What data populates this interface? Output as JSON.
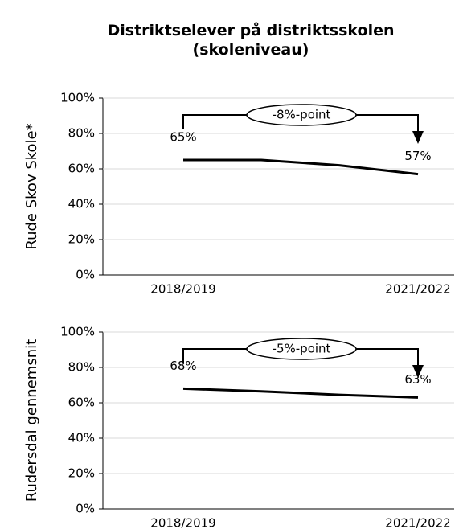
{
  "title": "Distriktselever på distriktsskolen\n(skoleniveau)",
  "chart_data": [
    {
      "type": "line",
      "ylabel": "Rude Skov Skole*",
      "categories": [
        "2018/2019",
        null,
        null,
        "2021/2022"
      ],
      "values": [
        65,
        65,
        62,
        57
      ],
      "value_labels": [
        "65%",
        null,
        null,
        "57%"
      ],
      "color": "#000000",
      "annotation": "-8%-point",
      "ylim": [
        0,
        100
      ],
      "yticks": [
        {
          "value": 0,
          "label": "0%"
        },
        {
          "value": 20,
          "label": "20%"
        },
        {
          "value": 40,
          "label": "40%"
        },
        {
          "value": 60,
          "label": "60%"
        },
        {
          "value": 80,
          "label": "80%"
        },
        {
          "value": 100,
          "label": "100%"
        }
      ],
      "grid": true
    },
    {
      "type": "line",
      "ylabel": "Rudersdal gennemsnit",
      "categories": [
        "2018/2019",
        null,
        null,
        "2021/2022"
      ],
      "values": [
        68,
        66.5,
        64.5,
        63
      ],
      "value_labels": [
        "68%",
        null,
        null,
        "63%"
      ],
      "color": "#000000",
      "annotation": "-5%-point",
      "ylim": [
        0,
        100
      ],
      "yticks": [
        {
          "value": 0,
          "label": "0%"
        },
        {
          "value": 20,
          "label": "20%"
        },
        {
          "value": 40,
          "label": "40%"
        },
        {
          "value": 60,
          "label": "60%"
        },
        {
          "value": 80,
          "label": "80%"
        },
        {
          "value": 100,
          "label": "100%"
        }
      ],
      "grid": true
    }
  ]
}
